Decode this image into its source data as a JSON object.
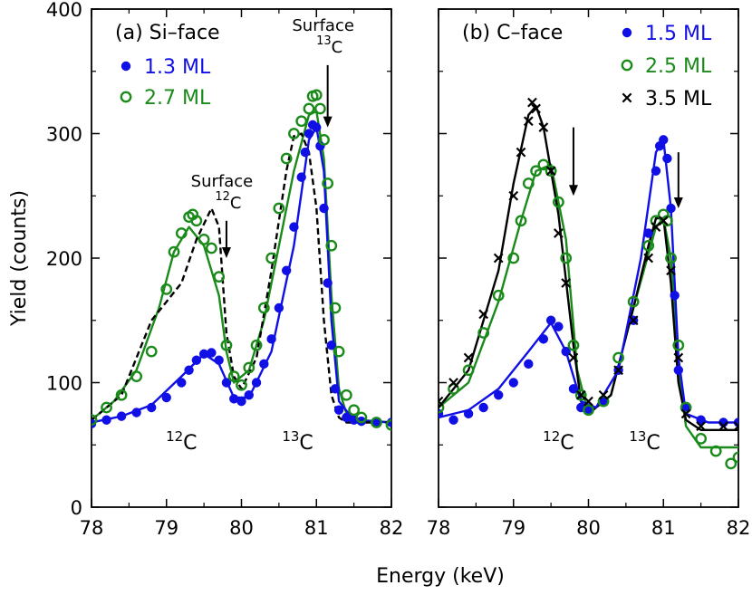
{
  "figure": {
    "xlabel": "Energy (keV)",
    "ylabel": "Yield (counts)"
  },
  "colors": {
    "blue": "#1010e6",
    "green": "#1a8a1a",
    "black": "#000000"
  },
  "chart_data": [
    {
      "type": "scatter",
      "panel": "a",
      "title": "(a) Si–face",
      "xlim": [
        78,
        82
      ],
      "ylim": [
        0,
        400
      ],
      "x_ticks": [
        "78",
        "79",
        "80",
        "81",
        "82"
      ],
      "y_ticks": [
        "0",
        "100",
        "200",
        "300",
        "400"
      ],
      "legend": {
        "placement": "top-left",
        "entries": [
          "1.3 ML",
          "2.7 ML"
        ]
      },
      "annotations": [
        {
          "label": "Surface",
          "iso_sup": "12",
          "iso_el": "C",
          "x": 79.8,
          "y_from": 230,
          "y_to": 200
        },
        {
          "label": "Surface",
          "iso_sup": "13",
          "iso_el": "C",
          "x": 81.15,
          "y_from": 355,
          "y_to": 305
        }
      ],
      "peak_labels": [
        {
          "sup": "12",
          "el": "C",
          "x": 79.2,
          "y": 45
        },
        {
          "sup": "13",
          "el": "C",
          "x": 80.75,
          "y": 45
        }
      ],
      "series": [
        {
          "name": "1.3 ML",
          "marker": "dot",
          "color": "blue",
          "x": [
            78.0,
            78.2,
            78.4,
            78.6,
            78.8,
            79.0,
            79.2,
            79.3,
            79.4,
            79.5,
            79.6,
            79.7,
            79.8,
            79.9,
            80.0,
            80.1,
            80.2,
            80.3,
            80.4,
            80.5,
            80.6,
            80.7,
            80.8,
            80.85,
            80.9,
            80.95,
            81.0,
            81.05,
            81.1,
            81.15,
            81.2,
            81.25,
            81.3,
            81.4,
            81.5,
            81.6,
            81.8,
            82.0
          ],
          "y": [
            67,
            70,
            73,
            76,
            80,
            88,
            100,
            110,
            118,
            123,
            124,
            118,
            100,
            87,
            85,
            90,
            100,
            115,
            135,
            160,
            190,
            225,
            265,
            285,
            300,
            307,
            305,
            290,
            240,
            180,
            130,
            95,
            78,
            72,
            70,
            69,
            68,
            68
          ]
        },
        {
          "name": "2.7 ML",
          "marker": "circle",
          "color": "green",
          "x": [
            78.0,
            78.2,
            78.4,
            78.6,
            78.8,
            79.0,
            79.1,
            79.2,
            79.3,
            79.35,
            79.4,
            79.5,
            79.6,
            79.7,
            79.8,
            79.9,
            80.0,
            80.1,
            80.2,
            80.3,
            80.4,
            80.5,
            80.6,
            80.7,
            80.8,
            80.9,
            80.95,
            81.0,
            81.05,
            81.1,
            81.15,
            81.2,
            81.25,
            81.3,
            81.4,
            81.5,
            81.6,
            81.8,
            82.0
          ],
          "y": [
            70,
            80,
            90,
            105,
            125,
            175,
            205,
            220,
            233,
            235,
            230,
            215,
            208,
            185,
            130,
            105,
            98,
            112,
            130,
            160,
            200,
            240,
            280,
            300,
            310,
            320,
            330,
            331,
            320,
            295,
            260,
            210,
            160,
            125,
            90,
            78,
            72,
            68,
            66
          ]
        },
        {
          "name": "",
          "style": "solid",
          "color": "green",
          "x": [
            78.0,
            78.3,
            78.6,
            78.9,
            79.1,
            79.3,
            79.5,
            79.7,
            79.8,
            79.9,
            80.1,
            80.3,
            80.5,
            80.7,
            80.9,
            81.0,
            81.1,
            81.2,
            81.3,
            81.4,
            81.6,
            82.0
          ],
          "y": [
            70,
            85,
            110,
            160,
            205,
            225,
            210,
            170,
            125,
            100,
            110,
            150,
            210,
            270,
            315,
            318,
            280,
            170,
            95,
            75,
            70,
            68
          ]
        },
        {
          "name": "",
          "style": "solid",
          "color": "blue",
          "x": [
            78.0,
            78.4,
            78.8,
            79.2,
            79.5,
            79.7,
            79.9,
            80.1,
            80.4,
            80.7,
            80.9,
            81.0,
            81.1,
            81.2,
            81.3,
            81.5,
            82.0
          ],
          "y": [
            68,
            73,
            82,
            105,
            123,
            115,
            88,
            88,
            125,
            210,
            295,
            305,
            270,
            150,
            85,
            70,
            68
          ]
        },
        {
          "name": "",
          "style": "dashed",
          "color": "black",
          "x": [
            78.0,
            78.4,
            78.8,
            79.2,
            79.4,
            79.6,
            79.7,
            79.8,
            79.9,
            80.0,
            80.2,
            80.4,
            80.6,
            80.7,
            80.8,
            80.9,
            81.0,
            81.1,
            81.2,
            81.3,
            81.4,
            82.0
          ],
          "y": [
            70,
            90,
            150,
            180,
            215,
            240,
            225,
            140,
            105,
            95,
            120,
            190,
            270,
            298,
            300,
            285,
            240,
            150,
            90,
            72,
            68,
            68
          ]
        }
      ]
    },
    {
      "type": "scatter",
      "panel": "b",
      "title": "(b) C–face",
      "xlim": [
        78,
        82
      ],
      "ylim": [
        0,
        400
      ],
      "x_ticks": [
        "78",
        "79",
        "80",
        "81",
        "82"
      ],
      "legend": {
        "placement": "top-right",
        "entries": [
          "1.5 ML",
          "2.5 ML",
          "3.5 ML"
        ]
      },
      "annotations": [
        {
          "x": 79.8,
          "y_from": 305,
          "y_to": 250
        },
        {
          "x": 81.2,
          "y_from": 285,
          "y_to": 240
        }
      ],
      "peak_labels": [
        {
          "sup": "12",
          "el": "C",
          "x": 79.6,
          "y": 45
        },
        {
          "sup": "13",
          "el": "C",
          "x": 80.75,
          "y": 45
        }
      ],
      "series": [
        {
          "name": "1.5 ML",
          "marker": "dot",
          "color": "blue",
          "x": [
            78.0,
            78.2,
            78.4,
            78.6,
            78.8,
            79.0,
            79.2,
            79.4,
            79.5,
            79.6,
            79.7,
            79.8,
            79.9,
            80.0,
            80.2,
            80.4,
            80.6,
            80.8,
            80.9,
            80.95,
            81.0,
            81.05,
            81.1,
            81.15,
            81.2,
            81.3,
            81.5,
            81.8,
            82.0
          ],
          "y": [
            75,
            70,
            75,
            80,
            90,
            100,
            115,
            135,
            150,
            145,
            125,
            95,
            80,
            78,
            85,
            110,
            150,
            220,
            270,
            290,
            295,
            280,
            240,
            170,
            110,
            80,
            70,
            68,
            68
          ]
        },
        {
          "name": "2.5 ML",
          "marker": "circle",
          "color": "green",
          "x": [
            78.0,
            78.2,
            78.4,
            78.6,
            78.8,
            79.0,
            79.1,
            79.2,
            79.3,
            79.4,
            79.5,
            79.6,
            79.7,
            79.8,
            79.9,
            80.0,
            80.2,
            80.4,
            80.6,
            80.8,
            80.9,
            81.0,
            81.05,
            81.1,
            81.2,
            81.3,
            81.5,
            81.7,
            81.9,
            82.0
          ],
          "y": [
            80,
            95,
            110,
            140,
            170,
            200,
            230,
            260,
            270,
            275,
            270,
            245,
            200,
            130,
            90,
            78,
            85,
            120,
            165,
            210,
            230,
            235,
            230,
            200,
            130,
            80,
            55,
            45,
            35,
            40
          ]
        },
        {
          "name": "3.5 ML",
          "marker": "cross",
          "color": "black",
          "x": [
            78.0,
            78.2,
            78.4,
            78.6,
            78.8,
            79.0,
            79.1,
            79.2,
            79.25,
            79.3,
            79.4,
            79.5,
            79.6,
            79.7,
            79.8,
            79.9,
            80.0,
            80.2,
            80.4,
            80.6,
            80.8,
            80.9,
            81.0,
            81.1,
            81.2,
            81.3,
            81.5,
            81.8,
            82.0
          ],
          "y": [
            85,
            100,
            120,
            155,
            200,
            250,
            285,
            310,
            325,
            320,
            305,
            270,
            220,
            180,
            120,
            90,
            85,
            90,
            110,
            150,
            200,
            225,
            230,
            190,
            120,
            75,
            65,
            65,
            65
          ]
        },
        {
          "name": "",
          "style": "solid",
          "color": "green",
          "x": [
            78.0,
            78.4,
            78.8,
            79.1,
            79.3,
            79.5,
            79.7,
            79.85,
            80.0,
            80.3,
            80.6,
            80.9,
            81.0,
            81.1,
            81.2,
            81.3,
            81.5,
            82.0
          ],
          "y": [
            80,
            100,
            165,
            230,
            270,
            275,
            215,
            110,
            75,
            90,
            160,
            225,
            232,
            200,
            110,
            65,
            48,
            48
          ]
        },
        {
          "name": "",
          "style": "solid",
          "color": "black",
          "x": [
            78.0,
            78.4,
            78.8,
            79.0,
            79.2,
            79.3,
            79.4,
            79.6,
            79.8,
            79.9,
            80.0,
            80.3,
            80.6,
            80.8,
            80.9,
            81.0,
            81.1,
            81.2,
            81.3,
            81.5,
            82.0
          ],
          "y": [
            80,
            110,
            190,
            260,
            315,
            322,
            305,
            235,
            130,
            85,
            75,
            90,
            160,
            210,
            232,
            232,
            180,
            100,
            70,
            62,
            62
          ]
        },
        {
          "name": "",
          "style": "solid",
          "color": "blue",
          "x": [
            78.0,
            78.4,
            78.8,
            79.2,
            79.5,
            79.7,
            79.9,
            80.1,
            80.4,
            80.7,
            80.9,
            81.0,
            81.1,
            81.2,
            81.3,
            81.6,
            82.0
          ],
          "y": [
            72,
            78,
            95,
            125,
            148,
            125,
            85,
            80,
            110,
            200,
            285,
            295,
            240,
            120,
            75,
            68,
            68
          ]
        }
      ]
    }
  ]
}
